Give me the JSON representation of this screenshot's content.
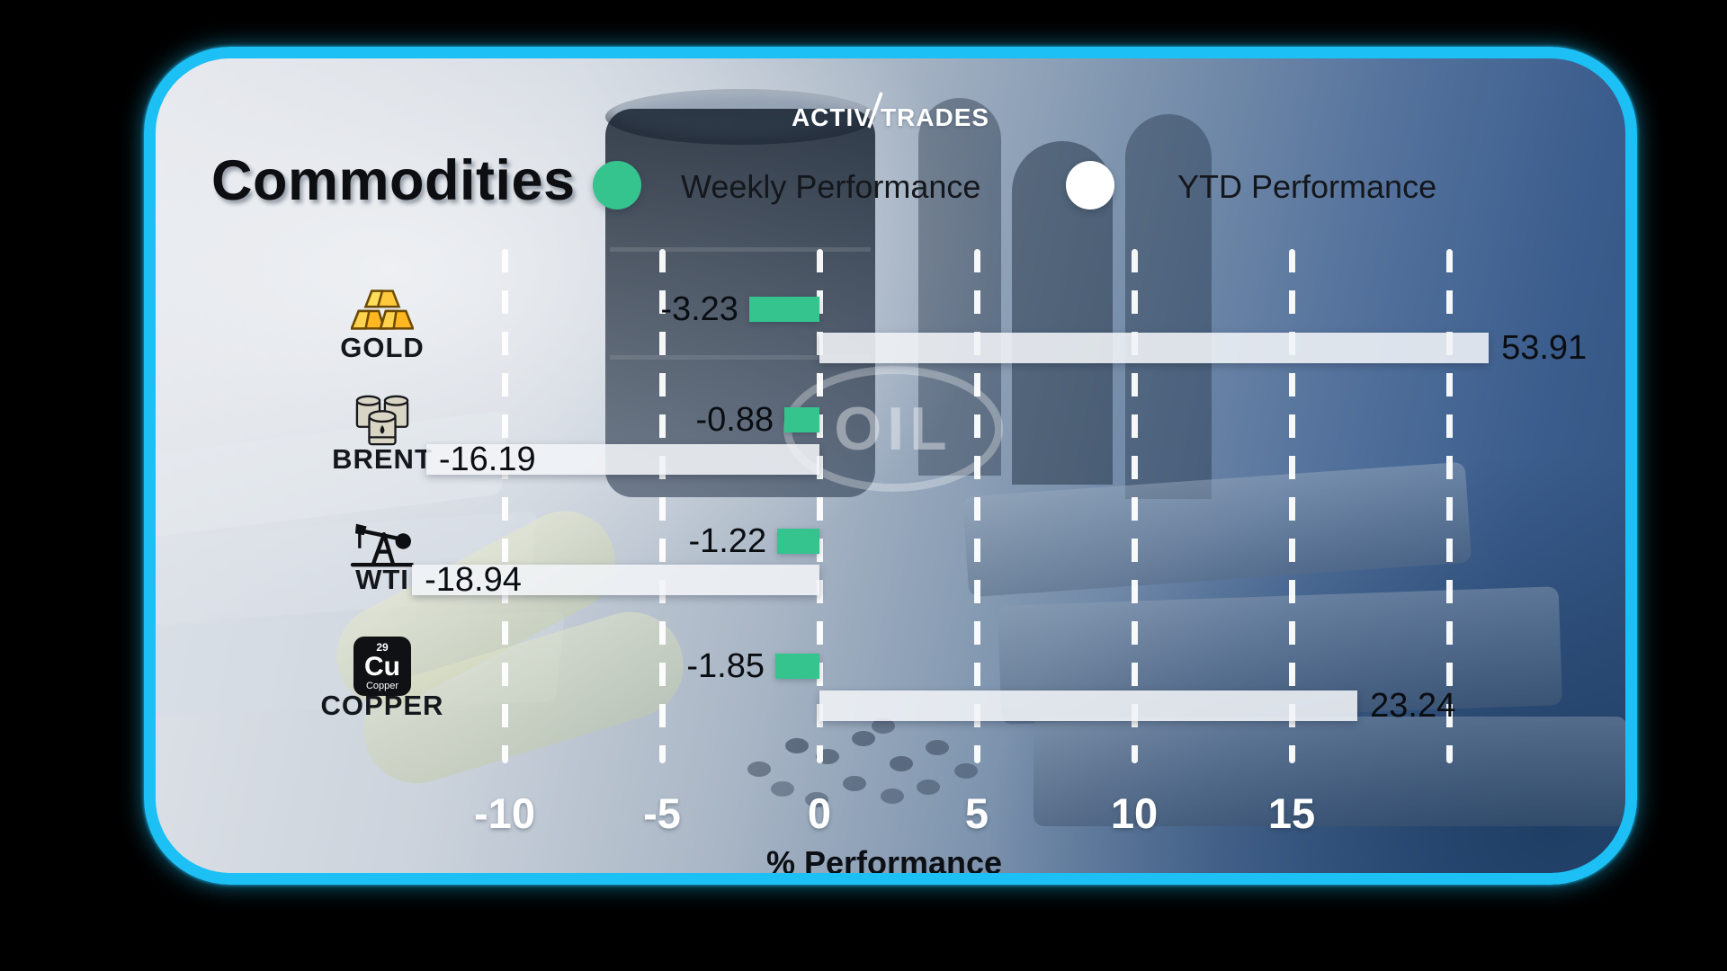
{
  "page": {
    "background": "#000000"
  },
  "card": {
    "border_color": "#1cc0f5",
    "bg_light": "#e2e5ea",
    "bg_dark": "#30527f"
  },
  "brand": {
    "name": "ActivTrades",
    "part1": "Activ",
    "part2": "Trades"
  },
  "header": {
    "title": "Commodities"
  },
  "legend": [
    {
      "label": "Weekly Performance",
      "color": "#35c48e"
    },
    {
      "label": "YTD Performance",
      "color": "#ffffff"
    }
  ],
  "background_decor": {
    "oil_label": "OIL"
  },
  "copper_tile": {
    "number": "29",
    "symbol": "Cu",
    "label": "Copper"
  },
  "chart_data": {
    "type": "bar",
    "orientation": "horizontal",
    "title": "Commodities",
    "categories": [
      "GOLD",
      "BRENT",
      "WTI",
      "COPPER"
    ],
    "icons": [
      "gold-ingots-icon",
      "oil-barrels-icon",
      "oil-pumpjack-icon",
      "copper-element-icon"
    ],
    "series": [
      {
        "name": "Weekly Performance",
        "color": "#35c48e",
        "values": [
          -3.23,
          -0.88,
          -1.22,
          -1.85
        ]
      },
      {
        "name": "YTD Performance",
        "color": "#f1f4f7",
        "values": [
          53.91,
          -16.19,
          -18.94,
          23.24
        ]
      }
    ],
    "xlabel": "% Performance",
    "x_ticks": [
      -10,
      -5,
      0,
      5,
      10,
      15
    ],
    "x_gridlines": [
      -10,
      -5,
      0,
      5,
      10,
      15,
      20
    ],
    "xlim": [
      -16.5,
      22.8
    ],
    "grid": "dashed-vertical-white",
    "legend_position": "top",
    "bars_note": "long bars are visually clipped in the source graphic; display_extents give drawn spans in % units",
    "display_extents": {
      "weekly": [
        -2.23,
        -1.11,
        -1.34,
        -1.4
      ],
      "ytd": [
        21.26,
        -12.49,
        -12.94,
        17.09
      ]
    }
  }
}
